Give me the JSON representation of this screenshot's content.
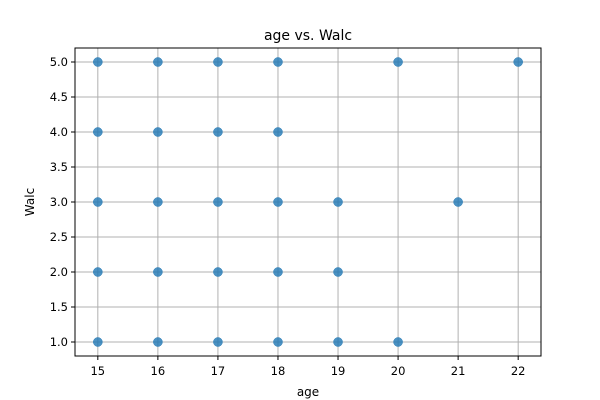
{
  "chart_data": {
    "type": "scatter",
    "title": "age vs. Walc",
    "xlabel": "age",
    "ylabel": "Walc",
    "xlim": [
      14.62,
      22.38
    ],
    "ylim": [
      0.8,
      5.2
    ],
    "xticks": [
      "15",
      "16",
      "17",
      "18",
      "19",
      "20",
      "21",
      "22"
    ],
    "yticks": [
      "1.0",
      "1.5",
      "2.0",
      "2.5",
      "3.0",
      "3.5",
      "4.0",
      "4.5",
      "5.0"
    ],
    "grid": true,
    "marker_color": "#1f77b4",
    "points": [
      {
        "x": 15,
        "y": 1
      },
      {
        "x": 15,
        "y": 2
      },
      {
        "x": 15,
        "y": 3
      },
      {
        "x": 15,
        "y": 4
      },
      {
        "x": 15,
        "y": 5
      },
      {
        "x": 16,
        "y": 1
      },
      {
        "x": 16,
        "y": 2
      },
      {
        "x": 16,
        "y": 3
      },
      {
        "x": 16,
        "y": 4
      },
      {
        "x": 16,
        "y": 5
      },
      {
        "x": 17,
        "y": 1
      },
      {
        "x": 17,
        "y": 2
      },
      {
        "x": 17,
        "y": 3
      },
      {
        "x": 17,
        "y": 4
      },
      {
        "x": 17,
        "y": 5
      },
      {
        "x": 18,
        "y": 1
      },
      {
        "x": 18,
        "y": 2
      },
      {
        "x": 18,
        "y": 3
      },
      {
        "x": 18,
        "y": 4
      },
      {
        "x": 18,
        "y": 5
      },
      {
        "x": 19,
        "y": 1
      },
      {
        "x": 19,
        "y": 2
      },
      {
        "x": 19,
        "y": 3
      },
      {
        "x": 20,
        "y": 1
      },
      {
        "x": 20,
        "y": 5
      },
      {
        "x": 21,
        "y": 3
      },
      {
        "x": 22,
        "y": 5
      }
    ]
  }
}
